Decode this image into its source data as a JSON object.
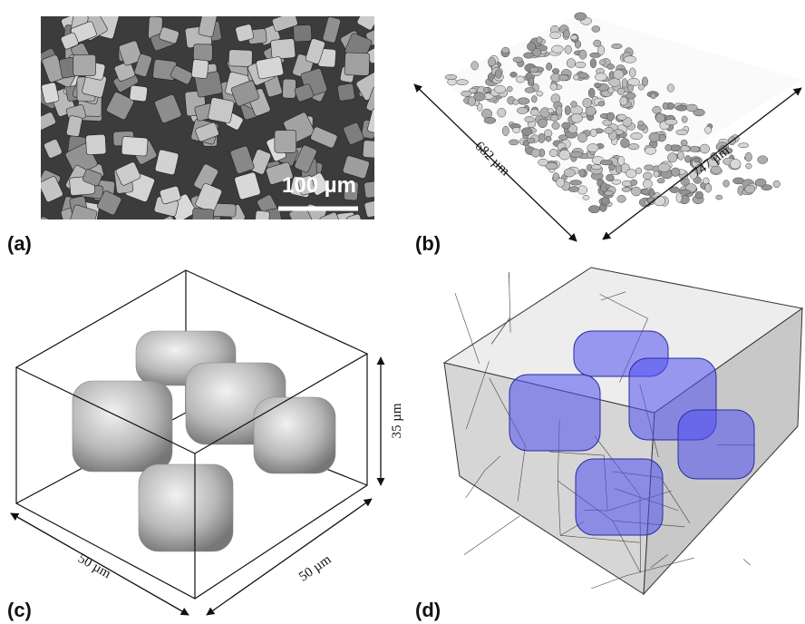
{
  "panels": [
    {
      "label": "(a)",
      "scale_bar": "100 µm"
    },
    {
      "label": "(b)",
      "dimensions": [
        "682 µm",
        "747 µm"
      ]
    },
    {
      "label": "(c)",
      "dimensions": [
        "50 µm",
        "50 µm",
        "35 µm"
      ]
    },
    {
      "label": "(d)"
    }
  ]
}
